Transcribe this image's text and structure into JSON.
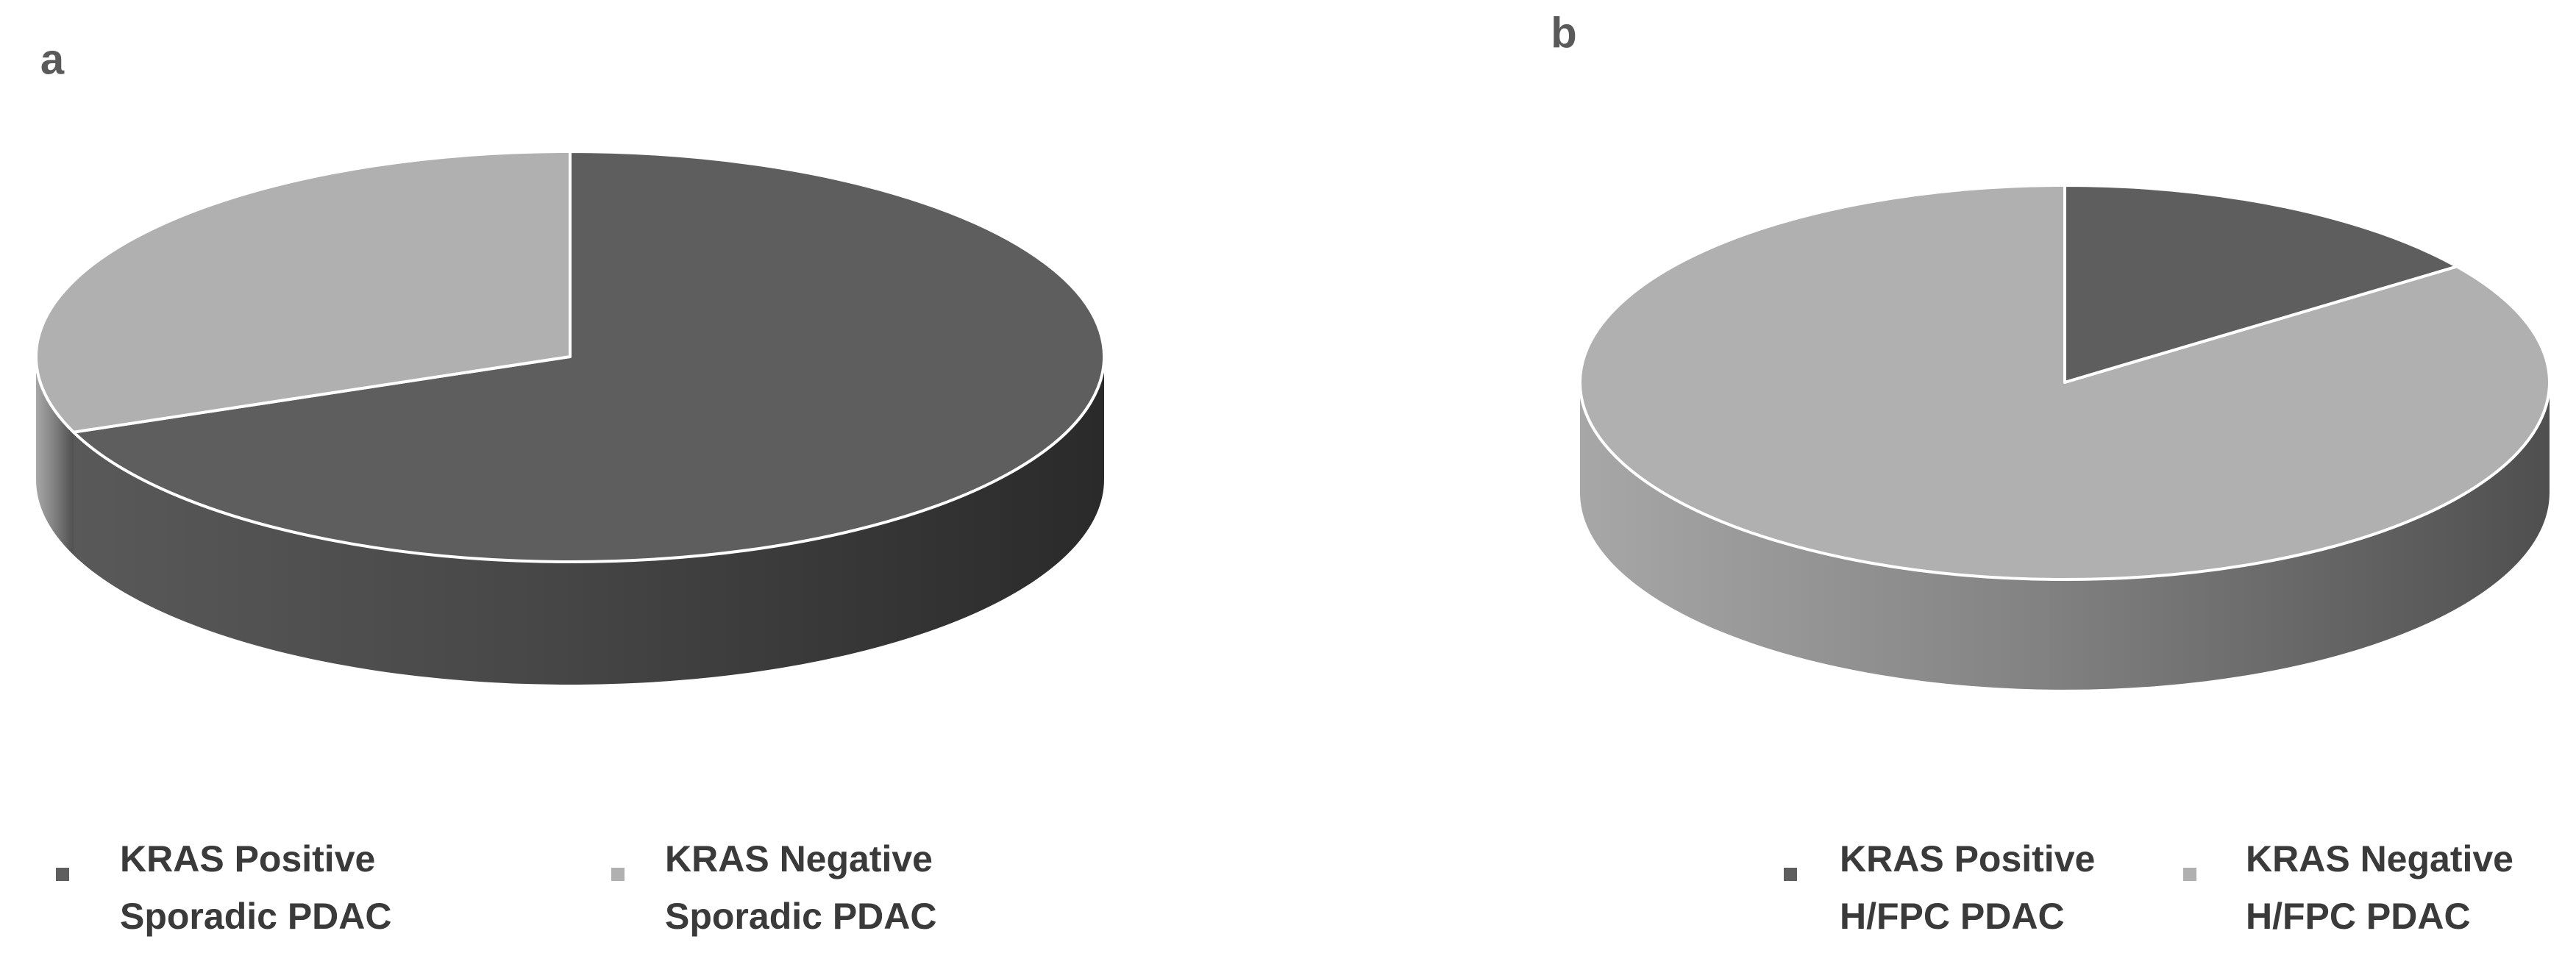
{
  "chart_data": [
    {
      "type": "pie",
      "panel_label": "a",
      "series": [
        {
          "name": "KRAS Positive Sporadic PDAC",
          "color": "#5e5e5e",
          "values": [
            69
          ]
        },
        {
          "name": "KRAS Negative Sporadic PDAC",
          "color": "#b0b0b0",
          "values": [
            31
          ]
        }
      ]
    },
    {
      "type": "pie",
      "panel_label": "b",
      "series": [
        {
          "name": "KRAS Positive H/FPC PDAC",
          "color": "#5e5e5e",
          "values": [
            15
          ]
        },
        {
          "name": "KRAS Negative H/FPC PDAC",
          "color": "#b0b0b0",
          "values": [
            85
          ]
        }
      ]
    }
  ]
}
